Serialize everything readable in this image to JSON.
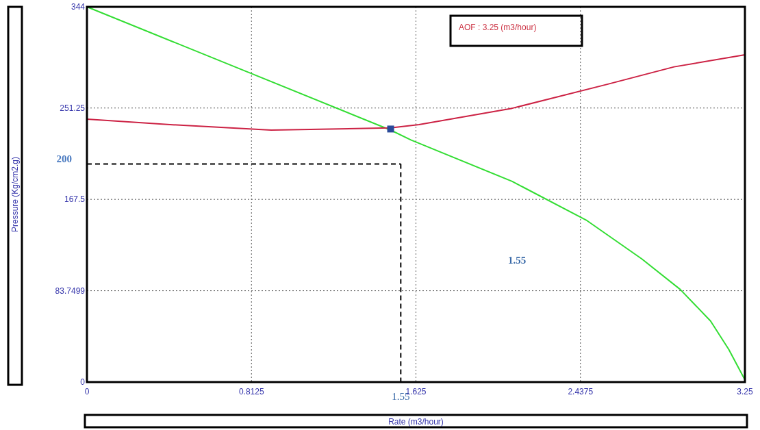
{
  "chart_data": {
    "type": "line",
    "xlabel": "Rate  (m3/hour)",
    "ylabel": "Pressure  (Kg/cm2.g)",
    "xlim": [
      0,
      3.25
    ],
    "xticks": [
      0,
      0.8125,
      1.625,
      2.4375,
      3.25
    ],
    "ylim": [
      0,
      344
    ],
    "yticks": [
      0,
      83.7499,
      167.5,
      251.25,
      344
    ],
    "grid": true,
    "series": [
      {
        "color": "#33dd33",
        "x": [
          0,
          0.81,
          1.5,
          1.6,
          2.1,
          2.47,
          2.74,
          2.93,
          3.08,
          3.17,
          3.25
        ],
        "values": [
          344,
          283,
          231,
          222,
          184,
          148,
          113,
          85,
          56,
          30,
          2
        ]
      },
      {
        "color": "#cc2244",
        "x": [
          0,
          0.41,
          0.91,
          1.5,
          1.64,
          2.1,
          2.57,
          2.9,
          3.25
        ],
        "values": [
          241,
          236,
          231,
          233,
          236,
          251,
          273,
          289,
          300
        ]
      },
      {
        "type": "scatter",
        "marker": "square",
        "color": "#2a4a9a",
        "x": [
          1.5
        ],
        "values": [
          232
        ]
      }
    ],
    "ref_lines": [
      {
        "axis": "y",
        "value": 200,
        "label": "200",
        "color": "#000000",
        "line_style": "dashed"
      },
      {
        "axis": "x",
        "value": 1.55,
        "label": "1.55",
        "color": "#000000",
        "line_style": "dashed"
      }
    ],
    "annotations": [
      "AOF :  3.25 (m3/hour)",
      "1.55"
    ]
  }
}
